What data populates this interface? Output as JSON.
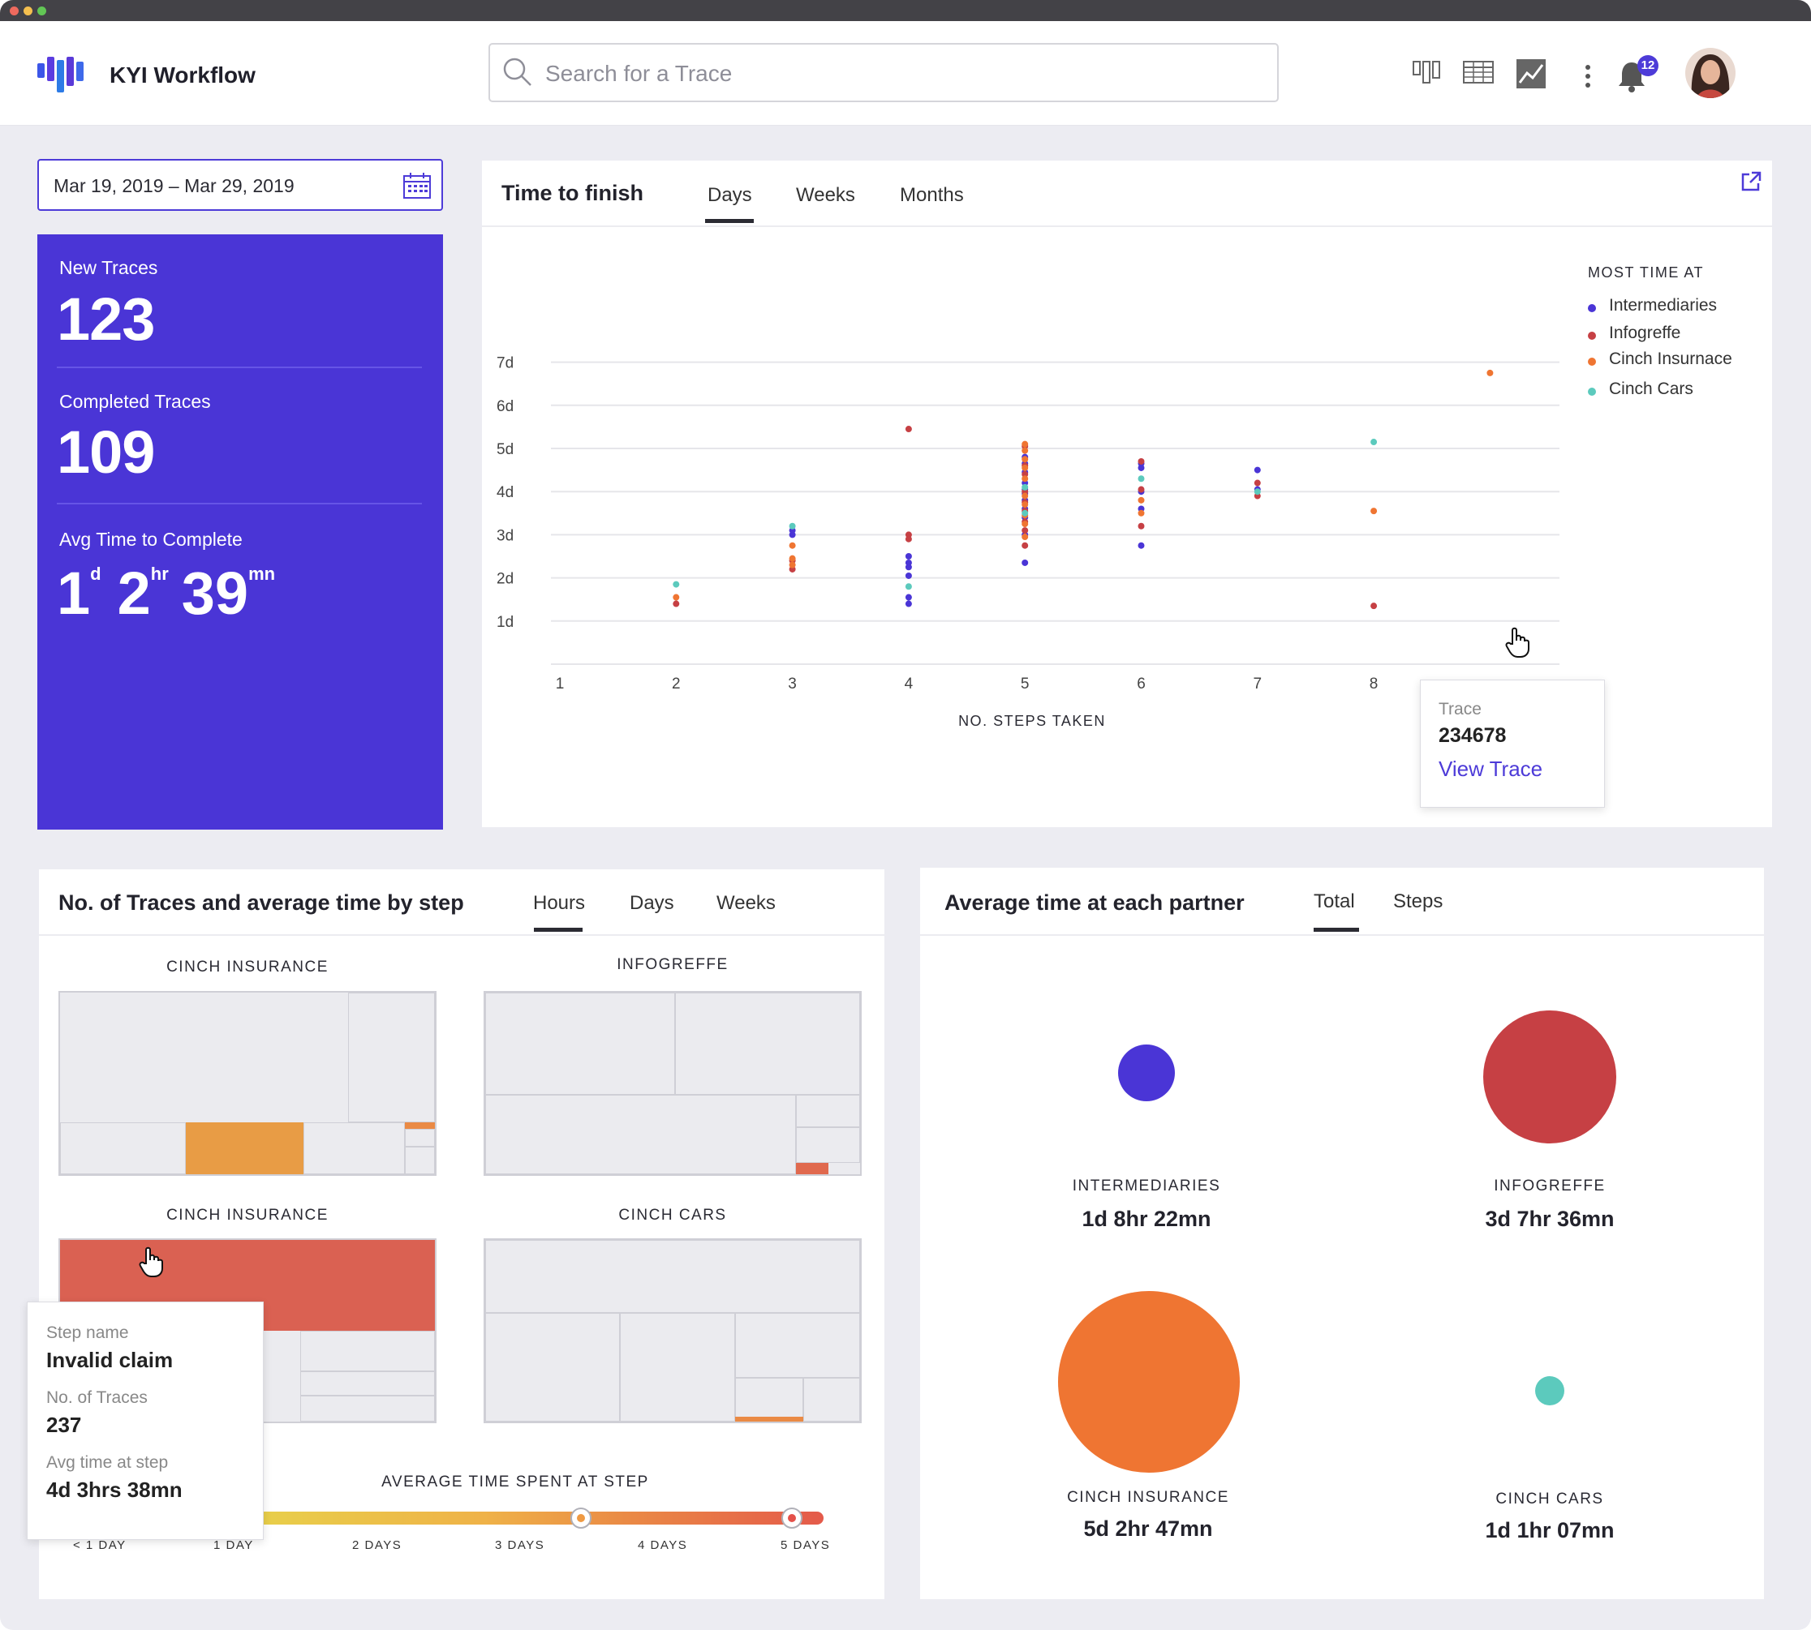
{
  "app": {
    "title": "KYI Workflow"
  },
  "search": {
    "placeholder": "Search for a Trace"
  },
  "header": {
    "icons": [
      "kanban-icon",
      "table-icon",
      "chart-icon",
      "more-icon",
      "bell-icon",
      "avatar"
    ],
    "notification_count": "12"
  },
  "date_range": {
    "value": "Mar 19, 2019 – Mar 29, 2019"
  },
  "stats": {
    "new_traces_label": "New Traces",
    "new_traces_value": "123",
    "completed_label": "Completed Traces",
    "completed_value": "109",
    "avg_label": "Avg Time to Complete",
    "avg_days": "1",
    "avg_days_unit": "d",
    "avg_hours": "2",
    "avg_hours_unit": "hr",
    "avg_minutes": "39",
    "avg_minutes_unit": "mn"
  },
  "time_to_finish": {
    "title": "Time to finish",
    "tabs": [
      "Days",
      "Weeks",
      "Months"
    ],
    "active_tab": "Days",
    "legend_title": "MOST TIME AT",
    "tooltip": {
      "label": "Trace",
      "value": "234678",
      "link": "View Trace"
    }
  },
  "chart_data": {
    "type": "scatter",
    "xlabel": "NO. STEPS TAKEN",
    "ylabel": "",
    "x_ticks": [
      "1",
      "2",
      "3",
      "4",
      "5",
      "6",
      "7",
      "8"
    ],
    "y_ticks": [
      "1d",
      "2d",
      "3d",
      "4d",
      "5d",
      "6d",
      "7d"
    ],
    "xlim": [
      0.65,
      9.4
    ],
    "ylim": [
      0,
      7.3
    ],
    "legend_title": "MOST TIME AT",
    "legend_position": "right",
    "grid": true,
    "series": [
      {
        "name": "Intermediaries",
        "color": "#4a35d6",
        "points": [
          [
            3,
            3.0
          ],
          [
            3,
            3.1
          ],
          [
            4,
            1.4
          ],
          [
            4,
            1.55
          ],
          [
            4,
            2.05
          ],
          [
            4,
            2.25
          ],
          [
            4,
            2.35
          ],
          [
            4,
            2.5
          ],
          [
            5,
            2.35
          ],
          [
            5,
            3.0
          ],
          [
            5,
            3.4
          ],
          [
            5,
            3.6
          ],
          [
            5,
            3.8
          ],
          [
            5,
            3.95
          ],
          [
            5,
            4.05
          ],
          [
            5,
            4.2
          ],
          [
            5,
            4.45
          ],
          [
            5,
            4.65
          ],
          [
            5,
            4.8
          ],
          [
            6,
            2.75
          ],
          [
            6,
            3.6
          ],
          [
            6,
            4.0
          ],
          [
            6,
            4.55
          ],
          [
            6,
            4.65
          ],
          [
            7,
            4.5
          ],
          [
            7,
            4.05
          ]
        ]
      },
      {
        "name": "Infogreffe",
        "color": "#c64044",
        "points": [
          [
            2,
            1.4
          ],
          [
            3,
            2.2
          ],
          [
            3,
            2.4
          ],
          [
            4,
            2.9
          ],
          [
            4,
            3.0
          ],
          [
            4,
            5.45
          ],
          [
            5,
            2.75
          ],
          [
            5,
            3.1
          ],
          [
            5,
            3.3
          ],
          [
            5,
            3.55
          ],
          [
            5,
            3.75
          ],
          [
            5,
            4.0
          ],
          [
            5,
            4.4
          ],
          [
            5,
            4.6
          ],
          [
            5,
            5.05
          ],
          [
            6,
            3.2
          ],
          [
            6,
            4.05
          ],
          [
            6,
            4.7
          ],
          [
            7,
            4.2
          ],
          [
            7,
            3.9
          ],
          [
            8,
            1.35
          ]
        ]
      },
      {
        "name": "Cinch Insurnace",
        "color": "#ef7532",
        "points": [
          [
            2,
            1.55
          ],
          [
            3,
            2.3
          ],
          [
            3,
            2.45
          ],
          [
            3,
            2.75
          ],
          [
            5,
            2.95
          ],
          [
            5,
            3.25
          ],
          [
            5,
            3.45
          ],
          [
            5,
            3.7
          ],
          [
            5,
            3.9
          ],
          [
            5,
            4.3
          ],
          [
            5,
            4.55
          ],
          [
            5,
            4.75
          ],
          [
            5,
            4.95
          ],
          [
            5,
            5.1
          ],
          [
            6,
            3.5
          ],
          [
            6,
            3.8
          ],
          [
            8,
            3.55
          ],
          [
            9,
            6.75
          ]
        ]
      },
      {
        "name": "Cinch Cars",
        "color": "#5ccabd",
        "points": [
          [
            2,
            1.85
          ],
          [
            3,
            3.2
          ],
          [
            4,
            1.8
          ],
          [
            5,
            3.5
          ],
          [
            5,
            4.1
          ],
          [
            6,
            4.3
          ],
          [
            7,
            4.0
          ],
          [
            8,
            5.15
          ]
        ]
      }
    ]
  },
  "traces_by_step": {
    "title": "No. of Traces and average time by step",
    "tabs": [
      "Hours",
      "Days",
      "Weeks"
    ],
    "active_tab": "Hours",
    "treemaps": [
      {
        "label": "CINCH INSURANCE"
      },
      {
        "label": "INFOGREFFE"
      },
      {
        "label": "CINCH INSURANCE"
      },
      {
        "label": "CINCH CARS"
      }
    ],
    "scale_title": "AVERAGE TIME SPENT AT STEP",
    "scale_ticks": [
      "< 1 DAY",
      "1 DAY",
      "2 DAYS",
      "3 DAYS",
      "4 DAYS",
      "5 DAYS"
    ],
    "tooltip": {
      "step_label": "Step name",
      "step_value": "Invalid claim",
      "traces_label": "No. of Traces",
      "traces_value": "237",
      "avg_label": "Avg time at step",
      "avg_value": "4d 3hrs 38mn"
    }
  },
  "partner_time": {
    "title": "Average time at each partner",
    "tabs": [
      "Total",
      "Steps"
    ],
    "active_tab": "Total",
    "partners": [
      {
        "name": "INTERMEDIARIES",
        "value": "1d 8hr 22mn",
        "color": "#4a35d6"
      },
      {
        "name": "INFOGREFFE",
        "value": "3d 7hr 36mn",
        "color": "#c64044"
      },
      {
        "name": "CINCH INSURANCE",
        "value": "5d 2hr 47mn",
        "color": "#ef7532"
      },
      {
        "name": "CINCH CARS",
        "value": "1d 1hr 07mn",
        "color": "#5ccabd"
      }
    ]
  }
}
